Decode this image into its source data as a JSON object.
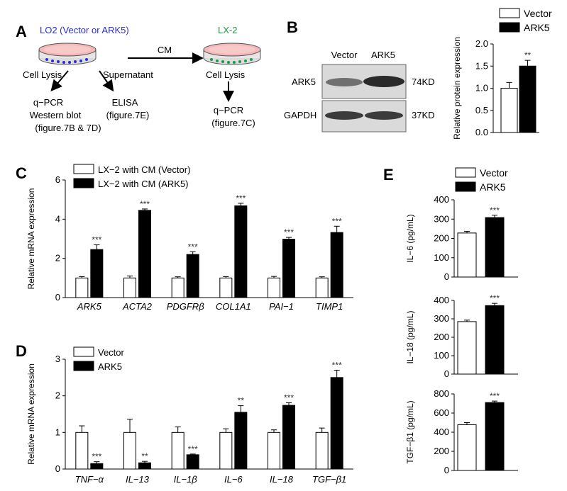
{
  "panel_letters": [
    "A",
    "B",
    "C",
    "D",
    "E"
  ],
  "colors": {
    "blue_text": "#2b2bd6",
    "green_text": "#1a9a4a",
    "dish_pink": "#f4b8b8",
    "dish_rim": "#e8e8e8"
  },
  "panel_a": {
    "dish1_label": "LO2 (Vector or ARK5)",
    "dish2_label": "LX-2",
    "cm_label": "CM",
    "left_lysis": "Cell Lysis",
    "supernatant": "Supernatant",
    "right_lysis": "Cell Lysis",
    "qpcr1": "q−PCR",
    "western": "Western blot",
    "fig7bd": "(figure.7B & 7D)",
    "elisa": "ELISA",
    "fig7e": "(figure.7E)",
    "qpcr2": "q−PCR",
    "fig7c": "(figure.7C)"
  },
  "panel_b": {
    "col_vector": "Vector",
    "col_ark5": "ARK5",
    "row1": "ARK5",
    "row2": "GAPDH",
    "size1": "74KD",
    "size2": "37KD"
  },
  "chart_data": [
    {
      "id": "B",
      "type": "bar",
      "categories": [
        "Vector",
        "ARK5"
      ],
      "values": [
        1.0,
        1.5
      ],
      "errors": [
        0.13,
        0.13
      ],
      "significance": [
        "",
        "**"
      ],
      "ylabel": "Relative protein expression",
      "ylim": [
        0,
        2.0
      ],
      "yticks": [
        "0.0",
        "0.5",
        "1.0",
        "1.5",
        "2.0"
      ],
      "legend": [
        "Vector",
        "ARK5"
      ]
    },
    {
      "id": "C",
      "type": "bar",
      "categories": [
        "ARK5",
        "ACTA2",
        "PDGFRβ",
        "COL1A1",
        "PAI−1",
        "TIMP1"
      ],
      "series": [
        {
          "name": "LX−2 with CM (Vector)",
          "values": [
            1,
            1,
            1,
            1,
            1,
            1
          ],
          "errors": [
            0.07,
            0.1,
            0.06,
            0.07,
            0.08,
            0.06
          ]
        },
        {
          "name": "LX−2 with CM (ARK5)",
          "values": [
            2.45,
            4.45,
            2.2,
            4.68,
            2.98,
            3.32
          ],
          "errors": [
            0.24,
            0.07,
            0.14,
            0.13,
            0.09,
            0.32
          ]
        }
      ],
      "significance": [
        "***",
        "***",
        "***",
        "***",
        "***",
        "***"
      ],
      "ylabel": "Relative mRNA expression",
      "ylim": [
        0,
        6
      ],
      "yticks": [
        "0",
        "2",
        "4",
        "6"
      ]
    },
    {
      "id": "D",
      "type": "bar",
      "categories": [
        "TNF−α",
        "IL−13",
        "IL−1β",
        "IL−6",
        "IL−18",
        "TGF−β1"
      ],
      "series": [
        {
          "name": "Vector",
          "values": [
            1,
            1,
            1,
            1,
            1,
            1
          ],
          "errors": [
            0.18,
            0.36,
            0.15,
            0.1,
            0.07,
            0.12
          ]
        },
        {
          "name": "ARK5",
          "values": [
            0.15,
            0.17,
            0.39,
            1.55,
            1.74,
            2.5
          ],
          "errors": [
            0.05,
            0.04,
            0.02,
            0.18,
            0.07,
            0.2
          ]
        }
      ],
      "significance": [
        "***",
        "**",
        "***",
        "**",
        "***",
        "***"
      ],
      "ylabel": "Relative mRNA expression",
      "ylim": [
        0,
        3
      ],
      "yticks": [
        "0",
        "1",
        "2",
        "3"
      ]
    },
    {
      "id": "E1",
      "type": "bar",
      "categories": [
        "Vector",
        "ARK5"
      ],
      "values": [
        228,
        308
      ],
      "errors": [
        9,
        12
      ],
      "significance": [
        "",
        "***"
      ],
      "ylabel": "IL−6 (pg/mL)",
      "ylim": [
        0,
        400
      ],
      "yticks": [
        "0",
        "100",
        "200",
        "300",
        "400"
      ],
      "legend": [
        "Vector",
        "ARK5"
      ]
    },
    {
      "id": "E2",
      "type": "bar",
      "categories": [
        "Vector",
        "ARK5"
      ],
      "values": [
        285,
        372
      ],
      "errors": [
        8,
        12
      ],
      "significance": [
        "",
        "***"
      ],
      "ylabel": "IL−18 (pg/mL)",
      "ylim": [
        0,
        400
      ],
      "yticks": [
        "0",
        "100",
        "200",
        "300",
        "400"
      ]
    },
    {
      "id": "E3",
      "type": "bar",
      "categories": [
        "Vector",
        "ARK5"
      ],
      "values": [
        478,
        710
      ],
      "errors": [
        22,
        15
      ],
      "significance": [
        "",
        "***"
      ],
      "ylabel": "TGF−β1 (pg/mL)",
      "ylim": [
        0,
        800
      ],
      "yticks": [
        "0",
        "200",
        "400",
        "600",
        "800"
      ]
    }
  ]
}
